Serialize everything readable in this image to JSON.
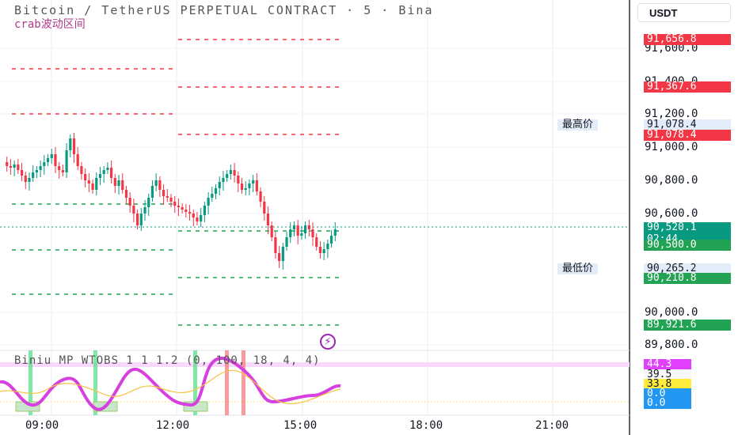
{
  "title": "Bitcoin / TetherUS PERPETUAL CONTRACT · 5 · Bina",
  "subtitle": "crab波动区间",
  "currency": "USDT",
  "oscillator_title": "Biniu MP WTOBS 1 1 1.2 (0, 100, 18, 4, 4)",
  "y_axis_ticks": [
    "91,600.0",
    "91,400.0",
    "91,200.0",
    "91,000.0",
    "90,800.0",
    "90,600.0",
    "90,000.0",
    "89,800.0"
  ],
  "price_tags": {
    "tag1": "91,656.8",
    "tag2": "91,367.6",
    "high_value": "91,078.4",
    "tag3": "91,078.4",
    "current_price": "90,520.1",
    "countdown": "02:44",
    "tag4": "90,500.0",
    "low_value": "90,265.2",
    "tag5": "90,210.8",
    "tag6": "89,921.6"
  },
  "side_labels": {
    "high": "最高价",
    "low": "最低价"
  },
  "osc_tags": [
    "44.3",
    "39.5",
    "33.8",
    "0.0",
    "0.0"
  ],
  "time_labels": [
    "09:00",
    "12:00",
    "15:00",
    "18:00",
    "21:00"
  ],
  "icons": {
    "bolt": "lightning-icon"
  },
  "colors": {
    "up": "#089981",
    "down": "#f23645",
    "osc": "#d63fe0",
    "level_red": "#f23645",
    "level_green": "#22a353"
  }
}
